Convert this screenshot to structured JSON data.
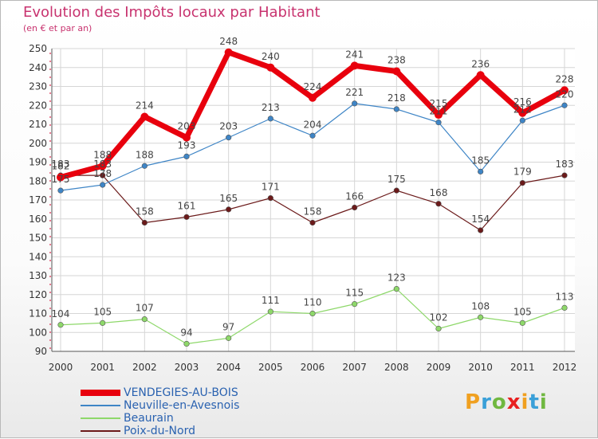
{
  "chart_data": {
    "type": "line",
    "title": "Evolution des Impôts locaux par Habitant",
    "subtitle": "(en € et par an)",
    "x": [
      "2000",
      "2001",
      "2002",
      "2003",
      "2004",
      "2005",
      "2006",
      "2007",
      "2008",
      "2009",
      "2010",
      "2011",
      "2012"
    ],
    "ylim": [
      90,
      250
    ],
    "yticks": [
      90,
      100,
      110,
      120,
      130,
      140,
      150,
      160,
      170,
      180,
      190,
      200,
      210,
      220,
      230,
      240,
      250
    ],
    "grid": true,
    "legend_position": "bottom-left",
    "series": [
      {
        "name": "VENDEGIES-AU-BOIS",
        "color": "#e8000d",
        "values": [
          182,
          188,
          214,
          203,
          248,
          240,
          224,
          241,
          238,
          215,
          236,
          216,
          228
        ]
      },
      {
        "name": "Neuville-en-Avesnois",
        "color": "#3e85c6",
        "values": [
          175,
          178,
          188,
          193,
          203,
          213,
          204,
          221,
          218,
          211,
          185,
          212,
          220
        ]
      },
      {
        "name": "Beaurain",
        "color": "#8ed86a",
        "values": [
          104,
          105,
          107,
          94,
          97,
          111,
          110,
          115,
          123,
          102,
          108,
          105,
          113
        ]
      },
      {
        "name": "Poix-du-Nord",
        "color": "#6b1a1a",
        "values": [
          183,
          183,
          158,
          161,
          165,
          171,
          158,
          166,
          175,
          168,
          154,
          179,
          183
        ]
      }
    ]
  },
  "logo": {
    "letters": [
      "P",
      "r",
      "o",
      "x",
      "i",
      "t",
      "i"
    ],
    "colors": [
      "#f0a020",
      "#3aa0d8",
      "#70b840",
      "#e82020",
      "#f0a020",
      "#3aa0d8",
      "#70b840"
    ]
  }
}
